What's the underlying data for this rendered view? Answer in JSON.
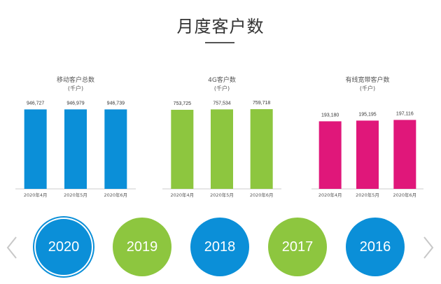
{
  "page": {
    "title": "月度客户数"
  },
  "chart_data": [
    {
      "type": "bar",
      "title": "移动客户总数",
      "subtitle": "(千户)",
      "categories": [
        "2020年4月",
        "2020年5月",
        "2020年6月"
      ],
      "values": [
        946727,
        946979,
        946739
      ],
      "value_labels": [
        "946,727",
        "946,979",
        "946,739"
      ],
      "ylim": [
        0,
        1000000
      ],
      "color": "#0b8fd8"
    },
    {
      "type": "bar",
      "title": "4G客户数",
      "subtitle": "(千户)",
      "categories": [
        "2020年4月",
        "2020年5月",
        "2020年6月"
      ],
      "values": [
        753725,
        757534,
        759718
      ],
      "value_labels": [
        "753,725",
        "757,534",
        "759,718"
      ],
      "ylim": [
        0,
        800000
      ],
      "color": "#8dc63f"
    },
    {
      "type": "bar",
      "title": "有线宽带客户数",
      "subtitle": "(千户)",
      "categories": [
        "2020年4月",
        "2020年5月",
        "2020年6月"
      ],
      "values": [
        193180,
        195195,
        197116
      ],
      "value_labels": [
        "193,180",
        "195,195",
        "197,116"
      ],
      "ylim": [
        0,
        240000
      ],
      "color": "#e0177a"
    }
  ],
  "years": [
    {
      "label": "2020",
      "color": "#0b8fd8",
      "active": true
    },
    {
      "label": "2019",
      "color": "#8dc63f",
      "active": false
    },
    {
      "label": "2018",
      "color": "#0b8fd8",
      "active": false
    },
    {
      "label": "2017",
      "color": "#8dc63f",
      "active": false
    },
    {
      "label": "2016",
      "color": "#0b8fd8",
      "active": false
    }
  ],
  "nav": {
    "prev_icon": "chevron-left-icon",
    "next_icon": "chevron-right-icon",
    "arrow_color": "#c8c8c8"
  }
}
